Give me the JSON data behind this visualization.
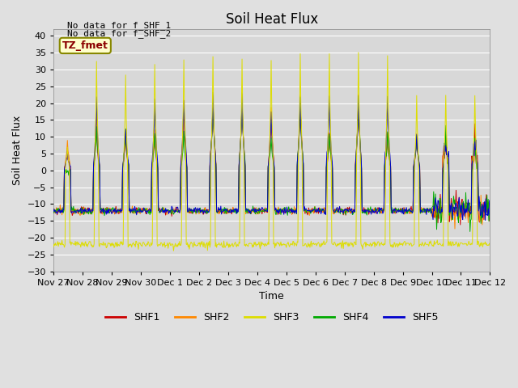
{
  "title": "Soil Heat Flux",
  "ylabel": "Soil Heat Flux",
  "xlabel": "Time",
  "ylim": [
    -30,
    42
  ],
  "yticks": [
    -30,
    -25,
    -20,
    -15,
    -10,
    -5,
    0,
    5,
    10,
    15,
    20,
    25,
    30,
    35,
    40
  ],
  "annotation_lines": [
    "No data for f_SHF_1",
    "No data for f_SHF_2"
  ],
  "tz_label": "TZ_fmet",
  "colors": {
    "SHF1": "#cc0000",
    "SHF2": "#ff8800",
    "SHF3": "#dddd00",
    "SHF4": "#00aa00",
    "SHF5": "#0000cc"
  },
  "background_color": "#e0e0e0",
  "plot_bg_color": "#d8d8d8",
  "title_fontsize": 12,
  "axis_fontsize": 9,
  "tick_fontsize": 8,
  "day_labels": [
    [
      "Nov 27",
      0
    ],
    [
      "Nov 28",
      24
    ],
    [
      "Nov 29",
      48
    ],
    [
      "Nov 30",
      72
    ],
    [
      "Dec 1",
      96
    ],
    [
      "Dec 2",
      120
    ],
    [
      "Dec 3",
      144
    ],
    [
      "Dec 4",
      168
    ],
    [
      "Dec 5",
      192
    ],
    [
      "Dec 6",
      216
    ],
    [
      "Dec 7",
      240
    ],
    [
      "Dec 8",
      264
    ],
    [
      "Dec 9",
      288
    ],
    [
      "Dec 10",
      312
    ],
    [
      "Dec 11",
      336
    ],
    [
      "Dec 12",
      360
    ]
  ]
}
